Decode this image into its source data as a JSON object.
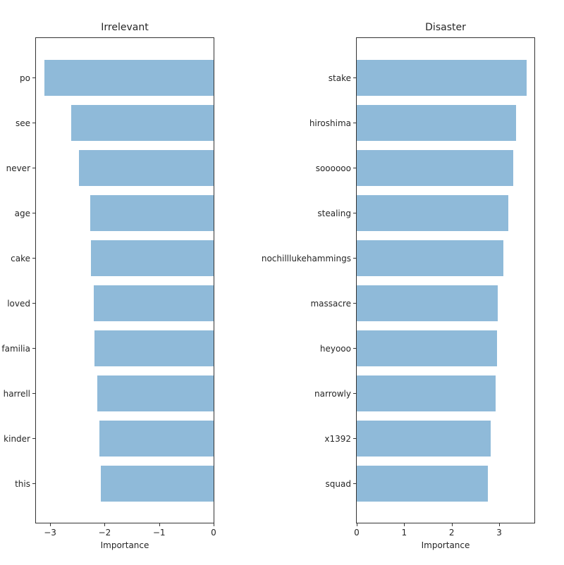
{
  "chart_data": [
    {
      "type": "bar",
      "orientation": "horizontal",
      "title": "Irrelevant",
      "xlabel": "Importance",
      "ylabel": "",
      "categories": [
        "po",
        "see",
        "never",
        "age",
        "cake",
        "loved",
        "familia",
        "harrell",
        "kinder",
        "this"
      ],
      "values": [
        -3.1,
        -2.61,
        -2.47,
        -2.27,
        -2.25,
        -2.2,
        -2.19,
        -2.13,
        -2.1,
        -2.07
      ],
      "xlim": [
        -3.26,
        0
      ],
      "xticks": [
        -3,
        -2,
        -1,
        0
      ],
      "xtick_labels": [
        "−3",
        "−2",
        "−1",
        "0"
      ],
      "grid": false,
      "color": "#8fbad9"
    },
    {
      "type": "bar",
      "orientation": "horizontal",
      "title": "Disaster",
      "xlabel": "Importance",
      "ylabel": "",
      "categories": [
        "stake",
        "hiroshima",
        "soooooo",
        "stealing",
        "nochilllukehammings",
        "massacre",
        "heyooo",
        "narrowly",
        "x1392",
        "squad"
      ],
      "values": [
        3.58,
        3.35,
        3.29,
        3.19,
        3.08,
        2.97,
        2.95,
        2.93,
        2.82,
        2.76
      ],
      "xlim": [
        0,
        3.74
      ],
      "xticks": [
        0,
        1,
        2,
        3
      ],
      "xtick_labels": [
        "0",
        "1",
        "2",
        "3"
      ],
      "grid": false,
      "color": "#8fbad9"
    }
  ]
}
